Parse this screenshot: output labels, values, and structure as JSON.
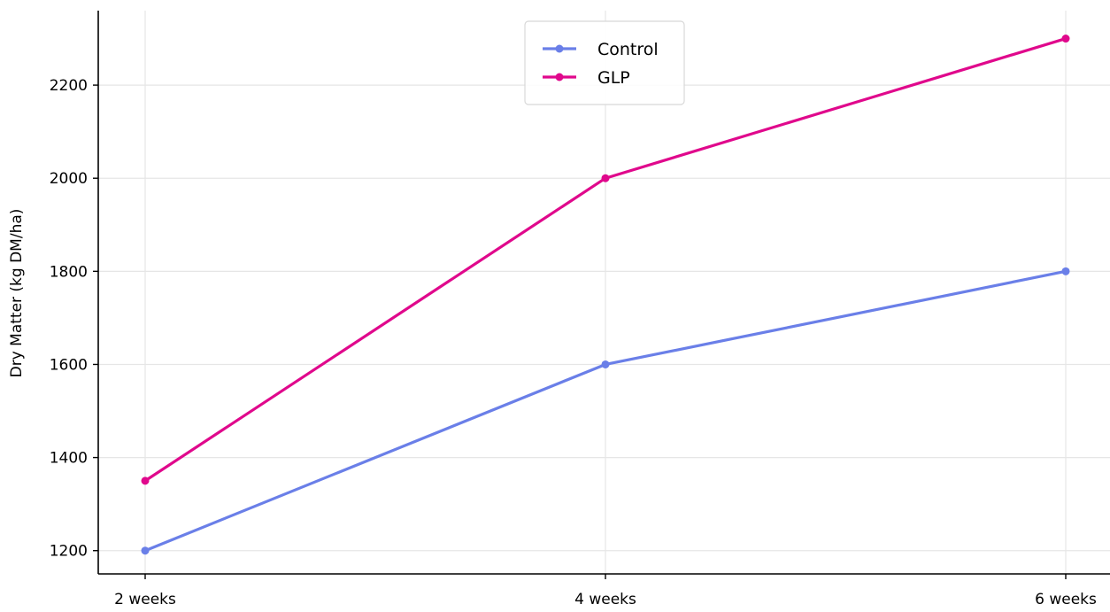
{
  "chart_data": {
    "type": "line",
    "categories": [
      "2 weeks",
      "4 weeks",
      "6 weeks"
    ],
    "series": [
      {
        "name": "Control",
        "values": [
          1200,
          1600,
          1800
        ],
        "color": "#6a7fe8"
      },
      {
        "name": "GLP",
        "values": [
          1350,
          2000,
          2300
        ],
        "color": "#e0088c"
      }
    ],
    "xlabel": "",
    "ylabel": "Dry Matter (kg DM/ha)",
    "yticks": [
      1200,
      1400,
      1600,
      1800,
      2000,
      2200
    ],
    "ylim": [
      1150,
      2360
    ],
    "grid": true,
    "legend_position": "top-center"
  }
}
